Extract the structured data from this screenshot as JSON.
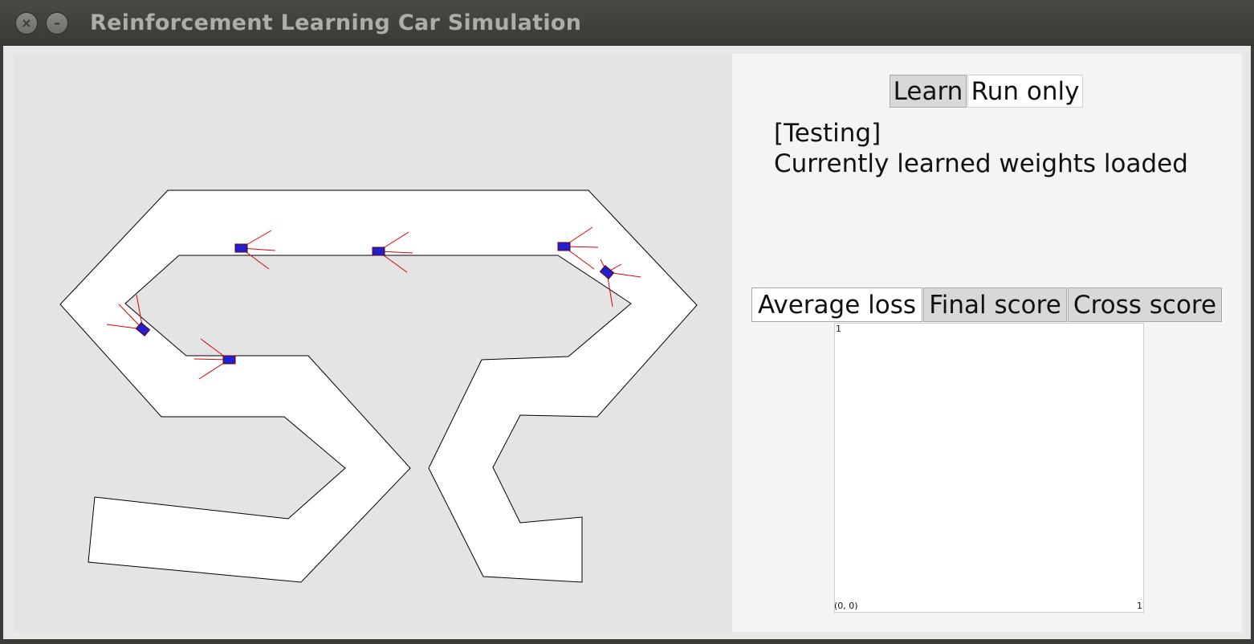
{
  "window": {
    "title": "Reinforcement Learning Car Simulation",
    "close_glyph": "×",
    "minimize_glyph": "–"
  },
  "controls": {
    "learn_label": "Learn",
    "run_only_label": "Run only"
  },
  "status": {
    "mode": "[Testing]",
    "message": "Currently learned weights loaded"
  },
  "graph_tabs": [
    {
      "label": "Average loss",
      "selected": true
    },
    {
      "label": "Final score",
      "selected": false
    },
    {
      "label": "Cross score",
      "selected": false
    }
  ],
  "graph": {
    "y_max_label": "1",
    "origin_label": "(0, 0)",
    "x_max_label": "1"
  },
  "colors": {
    "car_body": "#2020d0",
    "car_outline": "#6a0000",
    "sensor_ray": "#e00000",
    "track_fill": "#ffffff",
    "track_edge": "#000000"
  }
}
